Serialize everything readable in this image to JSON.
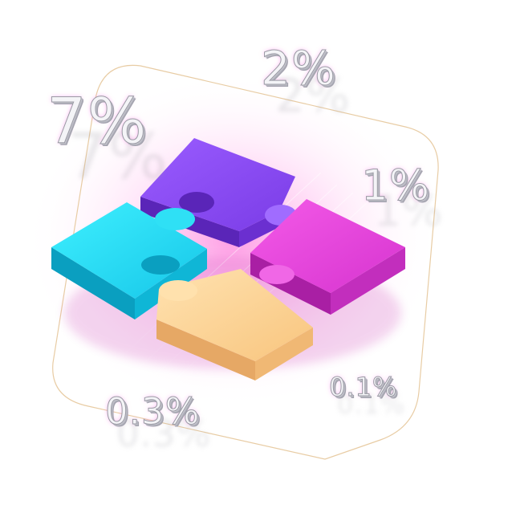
{
  "labels": {
    "seven": "7%",
    "two": "2%",
    "one": "1%",
    "zero_three": "0.3%",
    "zero_one": "0.1%"
  },
  "colors": {
    "piece_cyan": "#1fd2f0",
    "piece_purple": "#8748ee",
    "piece_magenta": "#e03ed6",
    "piece_peach": "#fcd08e",
    "glow": "#ff6fd8",
    "frame_line": "#e6c79a"
  }
}
